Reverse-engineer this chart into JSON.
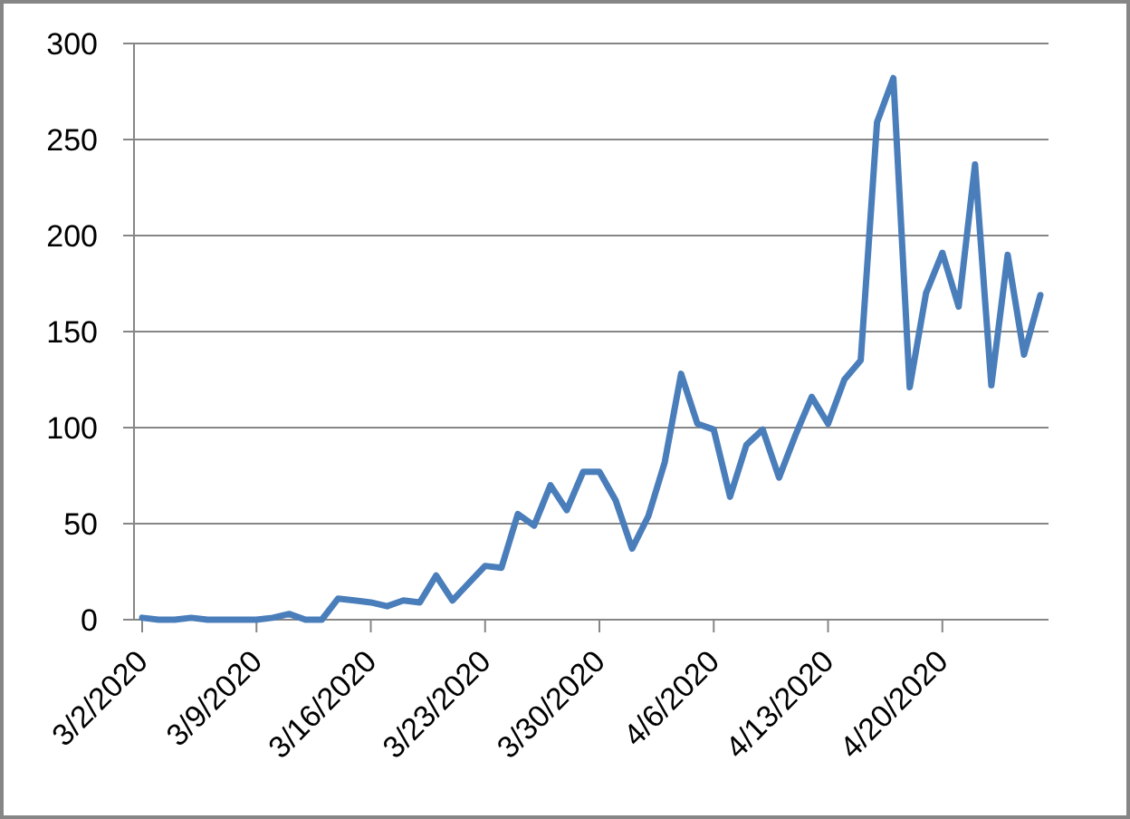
{
  "chart_data": {
    "type": "line",
    "x": [
      "2020-03-02",
      "2020-03-03",
      "2020-03-04",
      "2020-03-05",
      "2020-03-06",
      "2020-03-07",
      "2020-03-08",
      "2020-03-09",
      "2020-03-10",
      "2020-03-11",
      "2020-03-12",
      "2020-03-13",
      "2020-03-14",
      "2020-03-15",
      "2020-03-16",
      "2020-03-17",
      "2020-03-18",
      "2020-03-19",
      "2020-03-20",
      "2020-03-21",
      "2020-03-22",
      "2020-03-23",
      "2020-03-24",
      "2020-03-25",
      "2020-03-26",
      "2020-03-27",
      "2020-03-28",
      "2020-03-29",
      "2020-03-30",
      "2020-03-31",
      "2020-04-01",
      "2020-04-02",
      "2020-04-03",
      "2020-04-04",
      "2020-04-05",
      "2020-04-06",
      "2020-04-07",
      "2020-04-08",
      "2020-04-09",
      "2020-04-10",
      "2020-04-11",
      "2020-04-12",
      "2020-04-13",
      "2020-04-14",
      "2020-04-15",
      "2020-04-16",
      "2020-04-17",
      "2020-04-18",
      "2020-04-19",
      "2020-04-20",
      "2020-04-21",
      "2020-04-22",
      "2020-04-23",
      "2020-04-24",
      "2020-04-25",
      "2020-04-26"
    ],
    "series": [
      {
        "color": "#4a7ebb",
        "values": [
          1,
          0,
          0,
          1,
          0,
          0,
          0,
          0,
          1,
          3,
          0,
          0,
          11,
          10,
          9,
          7,
          10,
          9,
          23,
          10,
          19,
          28,
          27,
          55,
          49,
          70,
          57,
          77,
          77,
          62,
          37,
          54,
          82,
          128,
          102,
          99,
          64,
          91,
          99,
          74,
          96,
          116,
          102,
          125,
          135,
          259,
          282,
          121,
          170,
          191,
          163,
          237,
          122,
          190,
          138,
          169
        ]
      }
    ],
    "xlim": [
      "2020-03-01T12:00",
      "2020-04-26T12:00"
    ],
    "xticks": [
      {
        "value": "2020-03-02",
        "label": "3/2/2020"
      },
      {
        "value": "2020-03-09",
        "label": "3/9/2020"
      },
      {
        "value": "2020-03-16",
        "label": "3/16/2020"
      },
      {
        "value": "2020-03-23",
        "label": "3/23/2020"
      },
      {
        "value": "2020-03-30",
        "label": "3/30/2020"
      },
      {
        "value": "2020-04-06",
        "label": "4/6/2020"
      },
      {
        "value": "2020-04-13",
        "label": "4/13/2020"
      },
      {
        "value": "2020-04-20",
        "label": "4/20/2020"
      }
    ],
    "ylim": [
      0,
      300
    ],
    "yticks": [
      0,
      50,
      100,
      150,
      200,
      250,
      300
    ],
    "grid": "y",
    "line_style": "solid"
  }
}
